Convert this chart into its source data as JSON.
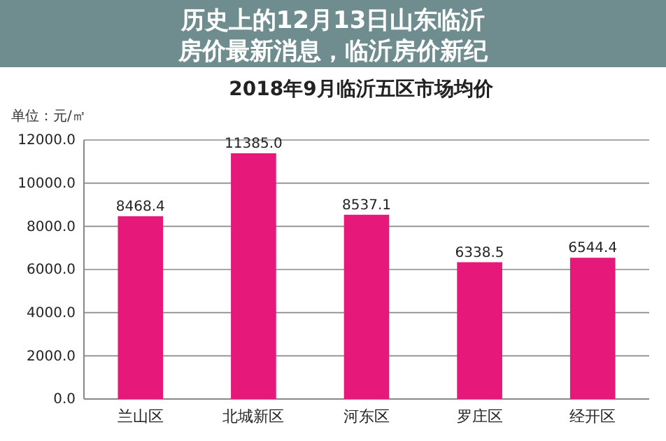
{
  "chart_data": {
    "type": "bar",
    "title": "2018年9月临沂五区市场均价",
    "ylabel": "单位：元/㎡",
    "annotations": [
      "历史上的12月13日山东临沂房价最新消息，临沂房价新纪"
    ],
    "categories": [
      "兰山区",
      "北城新区",
      "河东区",
      "罗庄区",
      "经开区"
    ],
    "values": [
      8468.4,
      11385.0,
      8537.1,
      6338.5,
      6544.4
    ],
    "value_labels": [
      "8468.4",
      "11385.0",
      "8537.1",
      "6338.5",
      "6544.4"
    ],
    "color": "#e6197a",
    "ylim": [
      0,
      12000
    ],
    "yticks": [
      {
        "value": 0,
        "label": "0.0"
      },
      {
        "value": 2000,
        "label": "2000.0"
      },
      {
        "value": 4000,
        "label": "4000.0"
      },
      {
        "value": 6000,
        "label": "6000.0"
      },
      {
        "value": 8000,
        "label": "8000.0"
      },
      {
        "value": 10000,
        "label": "10000.0"
      },
      {
        "value": 12000,
        "label": "12000.0"
      }
    ],
    "grid": "y"
  }
}
